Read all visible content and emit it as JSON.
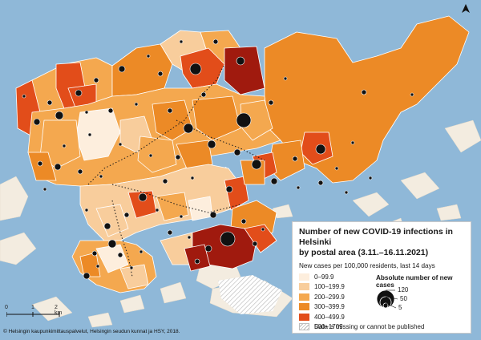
{
  "legend": {
    "title_line1": "Number of new COVID-19 infections in Helsinki",
    "title_line2": "by postal area (3.11.–16.11.2021)",
    "subtitle": "New cases per 100,000 residents, last 14 days",
    "classes": [
      {
        "label": "0–99.9",
        "color": "#fdeedd"
      },
      {
        "label": "100–199.9",
        "color": "#f8cd9c"
      },
      {
        "label": "200–299.9",
        "color": "#f4a84f"
      },
      {
        "label": "300–399.9",
        "color": "#ec8a26"
      },
      {
        "label": "400–499.9",
        "color": "#e24d1a"
      },
      {
        "label": "500–1709",
        "color": "#a01a0e"
      }
    ],
    "missing_label": "Data is missing or cannot be published",
    "absolute_title": "Absolute number of new cases",
    "circle_values": [
      "120",
      "50",
      "5"
    ]
  },
  "scale_bar": {
    "labels": [
      "0",
      "1",
      "2 km"
    ]
  },
  "credit": "© Helsingin kaupunkimittauspalvelut, Helsingin seudun kunnat ja HSY, 2018.",
  "colors": {
    "water": "#8fb8d8",
    "island_land": "#f3ece0"
  },
  "north_arrow": "north-arrow-icon"
}
